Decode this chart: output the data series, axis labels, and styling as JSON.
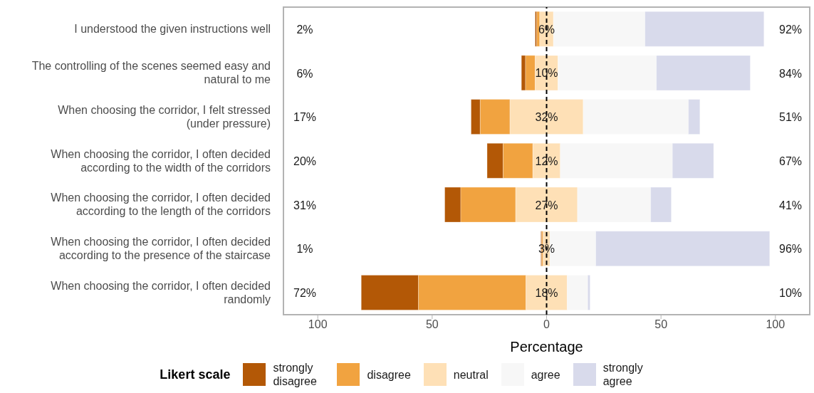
{
  "chart_data": {
    "type": "bar",
    "orientation": "horizontal",
    "xlabel": "Percentage",
    "legend_title": "Likert scale",
    "legend": "bottom",
    "categories": [
      "I understood the given instructions well",
      "The controlling of the scenes seemed easy and natural to me",
      "When choosing the corridor, I felt stressed (under pressure)",
      "When choosing the corridor, I often decided according to the width of the corridors",
      "When choosing the corridor, I often decided according to the length of the corridors",
      "When choosing the corridor, I often decided according to the presence of the staircase",
      "When choosing the corridor, I often decided randomly"
    ],
    "series": [
      {
        "name": "strongly disagree",
        "color": "#b35806",
        "base": [
          -5,
          -11,
          -33,
          -26,
          -44.5,
          -2.5,
          -81
        ],
        "values": [
          0.7,
          1.8,
          4,
          7,
          7,
          0.4,
          25
        ]
      },
      {
        "name": "disagree",
        "color": "#f1a340",
        "base": [
          -4.3,
          -9.2,
          -29,
          -19,
          -37.5,
          -2.1,
          -56
        ],
        "values": [
          1.3,
          4.2,
          13,
          13,
          24,
          0.6,
          47
        ]
      },
      {
        "name": "neutral",
        "color": "#fee0b6",
        "base": [
          -3,
          -5,
          -16,
          -6,
          -13.5,
          -1.5,
          -9
        ],
        "values": [
          6,
          10,
          32,
          12,
          27,
          3,
          18
        ],
        "value_labels": [
          "6%",
          "10%",
          "32%",
          "12%",
          "27%",
          "3%",
          "18%"
        ]
      },
      {
        "name": "agree",
        "color": "#f7f7f7",
        "base": [
          3,
          5,
          16,
          6,
          13.5,
          1.5,
          9
        ],
        "values": [
          40,
          43,
          46,
          49,
          32,
          20,
          9
        ]
      },
      {
        "name": "strongly agree",
        "color": "#d8daeb",
        "base": [
          43,
          48,
          62,
          55,
          45.5,
          21.5,
          18
        ],
        "values": [
          52,
          41,
          5,
          18,
          9,
          76,
          1
        ]
      }
    ],
    "annotations": [
      "2%",
      "92%",
      "6%",
      "84%",
      "17%",
      "51%",
      "20%",
      "67%",
      "31%",
      "41%",
      "1%",
      "96%",
      "72%",
      "10%"
    ],
    "xlim": [
      -115,
      115
    ],
    "xticks": [
      {
        "value": -100,
        "label": "100"
      },
      {
        "value": -50,
        "label": "50"
      },
      0,
      50,
      100
    ],
    "ref_lines": [
      {
        "axis": "x",
        "value": 0,
        "color": "#000000",
        "line_style": "dashed"
      }
    ]
  }
}
